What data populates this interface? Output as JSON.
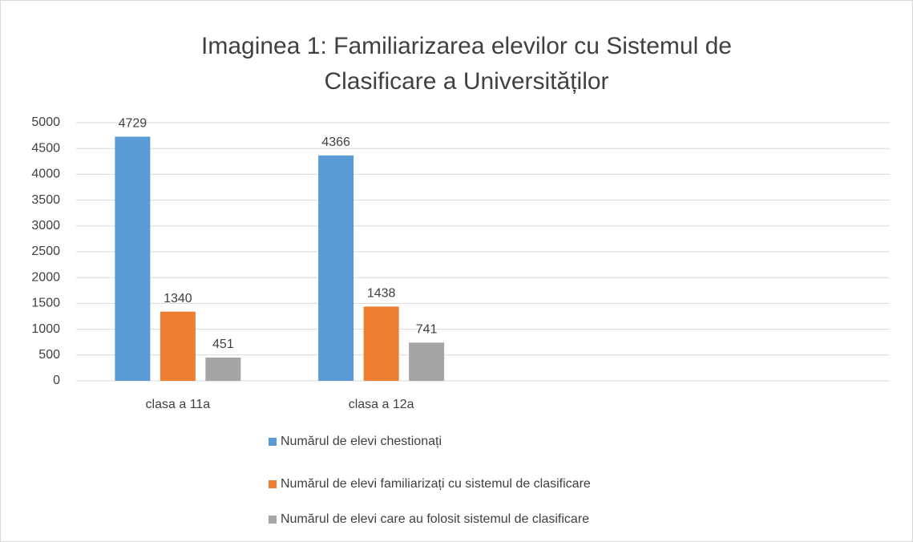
{
  "chart_data": {
    "type": "bar",
    "title": "Imaginea 1: Familiarizarea elevilor cu Sistemul de Clasificare a Universităților",
    "categories": [
      "clasa a 11a",
      "clasa a 12a",
      null,
      null
    ],
    "series": [
      {
        "name": "Numărul de elevi chestionați",
        "color": "#5b9bd5",
        "values": [
          4729,
          4366,
          null,
          null
        ]
      },
      {
        "name": "Numărul de elevi familiarizați cu sistemul de clasificare",
        "color": "#ed7d31",
        "values": [
          1340,
          1438,
          null,
          null
        ]
      },
      {
        "name": "Numărul de elevi care au folosit sistemul de clasificare",
        "color": "#a5a5a5",
        "values": [
          451,
          741,
          null,
          null
        ]
      }
    ],
    "ylim": [
      0,
      5000
    ],
    "yticks": [
      0,
      500,
      1000,
      1500,
      2000,
      2500,
      3000,
      3500,
      4000,
      4500,
      5000
    ],
    "grid": true,
    "legend": "bottom"
  }
}
